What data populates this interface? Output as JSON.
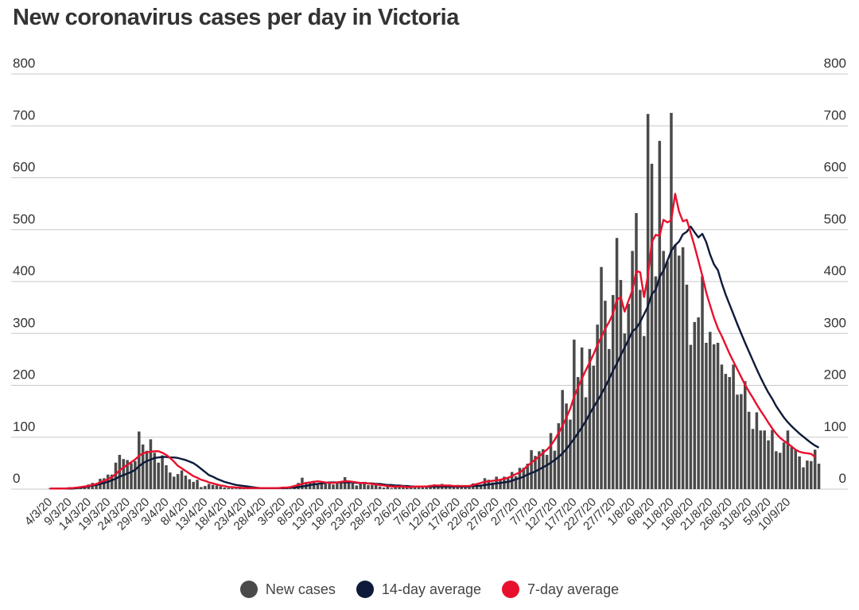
{
  "title": "New coronavirus cases per day in Victoria",
  "colors": {
    "bars": "#4a4a4a",
    "avg14": "#0d1a3a",
    "avg7": "#e8112d",
    "grid": "#c8c8c8"
  },
  "legend": [
    {
      "label": "New cases",
      "color": "#4a4a4a",
      "icon": "dot-icon"
    },
    {
      "label": "14-day average",
      "color": "#0d1a3a",
      "icon": "dot-icon"
    },
    {
      "label": "7-day average",
      "color": "#e8112d",
      "icon": "dot-icon"
    }
  ],
  "chart_data": {
    "type": "bar",
    "x_start": "2020-03-04",
    "y_ticks": [
      0,
      100,
      200,
      300,
      400,
      500,
      600,
      700,
      800
    ],
    "ylim": [
      0,
      800
    ],
    "grid": true,
    "legend_position": "bottom",
    "x_tick_labels": [
      "4/3/20",
      "9/3/20",
      "14/3/20",
      "19/3/20",
      "24/3/20",
      "29/3/20",
      "3/4/20",
      "8/4/20",
      "13/4/20",
      "18/4/20",
      "23/4/20",
      "28/4/20",
      "3/5/20",
      "8/5/20",
      "13/5/20",
      "18/5/20",
      "23/5/20",
      "28/5/20",
      "2/6/20",
      "7/6/20",
      "12/6/20",
      "17/6/20",
      "22/6/20",
      "27/6/20",
      "2/7/20",
      "7/7/20",
      "12/7/20",
      "17/7/20",
      "22/7/20",
      "27/7/20",
      "1/8/20",
      "6/8/20",
      "11/8/20",
      "16/8/20",
      "21/8/20",
      "26/8/20",
      "31/8/20",
      "5/9/20",
      "10/9/20"
    ],
    "series": [
      {
        "name": "New cases",
        "type": "bar",
        "values": [
          1,
          1,
          1,
          1,
          1,
          2,
          2,
          3,
          4,
          6,
          9,
          12,
          10,
          20,
          21,
          28,
          28,
          51,
          66,
          58,
          56,
          50,
          54,
          111,
          86,
          74,
          96,
          70,
          51,
          65,
          46,
          32,
          24,
          29,
          36,
          26,
          19,
          14,
          18,
          4,
          6,
          10,
          8,
          7,
          5,
          3,
          2,
          2,
          1,
          3,
          2,
          2,
          2,
          1,
          4,
          2,
          2,
          1,
          1,
          2,
          3,
          1,
          1,
          2,
          12,
          22,
          13,
          14,
          16,
          11,
          11,
          10,
          13,
          9,
          12,
          15,
          23,
          15,
          11,
          7,
          11,
          14,
          8,
          8,
          8,
          5,
          3,
          6,
          2,
          5,
          4,
          6,
          4,
          5,
          5,
          4,
          4,
          7,
          8,
          9,
          7,
          10,
          5,
          3,
          4,
          8,
          4,
          4,
          6,
          11,
          9,
          6,
          21,
          18,
          13,
          24,
          19,
          24,
          22,
          33,
          25,
          41,
          41,
          49,
          75,
          64,
          73,
          77,
          66,
          108,
          74,
          127,
          191,
          165,
          134,
          288,
          216,
          273,
          177,
          270,
          238,
          317,
          428,
          363,
          270,
          374,
          484,
          403,
          300,
          357,
          459,
          532,
          384,
          295,
          723,
          627,
          410,
          671,
          459,
          439,
          725,
          471,
          450,
          466,
          394,
          278,
          322,
          331,
          410,
          282,
          303,
          279,
          282,
          240,
          222,
          216,
          240,
          182,
          183,
          208,
          149,
          116,
          148,
          113,
          113,
          94,
          114,
          73,
          70,
          90,
          113,
          81,
          76,
          63,
          42,
          55,
          54,
          76,
          49
        ]
      },
      {
        "name": "14-day average",
        "type": "line",
        "values": [
          1,
          1,
          1,
          1,
          1,
          1,
          1,
          2,
          3,
          4,
          5,
          7,
          8,
          10,
          12,
          14,
          17,
          20,
          24,
          27,
          30,
          33,
          37,
          44,
          50,
          54,
          57,
          60,
          61,
          62,
          62,
          61,
          61,
          60,
          58,
          56,
          53,
          50,
          45,
          39,
          33,
          27,
          24,
          20,
          17,
          14,
          12,
          10,
          8,
          7,
          6,
          5,
          4,
          3,
          2,
          2,
          2,
          2,
          2,
          2,
          2,
          2,
          3,
          3,
          4,
          5,
          6,
          8,
          9,
          10,
          11,
          12,
          13,
          13,
          13,
          13,
          13,
          13,
          13,
          12,
          12,
          12,
          11,
          11,
          10,
          10,
          9,
          8,
          8,
          7,
          7,
          6,
          6,
          5,
          5,
          5,
          5,
          5,
          5,
          5,
          5,
          5,
          5,
          5,
          5,
          5,
          5,
          5,
          5,
          6,
          6,
          7,
          8,
          9,
          10,
          11,
          12,
          13,
          14,
          16,
          19,
          21,
          24,
          28,
          31,
          34,
          38,
          42,
          46,
          51,
          56,
          62,
          69,
          77,
          87,
          97,
          108,
          119,
          131,
          145,
          158,
          170,
          183,
          197,
          212,
          228,
          242,
          258,
          273,
          288,
          304,
          310,
          322,
          337,
          352,
          376,
          384,
          409,
          421,
          440,
          459,
          470,
          477,
          491,
          496,
          506,
          495,
          485,
          492,
          476,
          452,
          433,
          422,
          397,
          375,
          356,
          337,
          318,
          300,
          282,
          265,
          248,
          231,
          215,
          200,
          186,
          174,
          160,
          149,
          138,
          129,
          121,
          114,
          107,
          101,
          95,
          89,
          84,
          80
        ]
      },
      {
        "name": "7-day average",
        "type": "line",
        "values": [
          1,
          1,
          1,
          1,
          1,
          2,
          2,
          3,
          4,
          5,
          6,
          8,
          10,
          13,
          16,
          19,
          23,
          29,
          36,
          42,
          47,
          52,
          57,
          64,
          69,
          71,
          72,
          73,
          73,
          70,
          66,
          60,
          53,
          45,
          40,
          35,
          30,
          25,
          22,
          18,
          16,
          13,
          11,
          9,
          7,
          6,
          4,
          4,
          3,
          3,
          2,
          2,
          2,
          2,
          2,
          2,
          2,
          2,
          2,
          2,
          3,
          3,
          4,
          6,
          8,
          10,
          12,
          13,
          14,
          15,
          14,
          13,
          12,
          12,
          13,
          14,
          15,
          15,
          14,
          13,
          12,
          12,
          11,
          10,
          9,
          8,
          7,
          6,
          5,
          5,
          5,
          5,
          4,
          4,
          5,
          5,
          5,
          5,
          6,
          7,
          7,
          7,
          7,
          7,
          6,
          6,
          6,
          6,
          6,
          8,
          10,
          12,
          14,
          15,
          16,
          17,
          18,
          20,
          22,
          25,
          29,
          32,
          38,
          45,
          51,
          57,
          63,
          70,
          76,
          84,
          95,
          108,
          122,
          138,
          155,
          178,
          196,
          213,
          229,
          244,
          260,
          278,
          293,
          309,
          322,
          338,
          365,
          370,
          342,
          363,
          383,
          420,
          418,
          370,
          411,
          476,
          490,
          488,
          519,
          514,
          518,
          569,
          535,
          516,
          519,
          494,
          468,
          440,
          411,
          379,
          354,
          330,
          310,
          295,
          278,
          261,
          246,
          231,
          216,
          201,
          188,
          176,
          163,
          151,
          140,
          128,
          117,
          107,
          99,
          93,
          88,
          82,
          76,
          72,
          70,
          69,
          68,
          62
        ]
      }
    ]
  }
}
